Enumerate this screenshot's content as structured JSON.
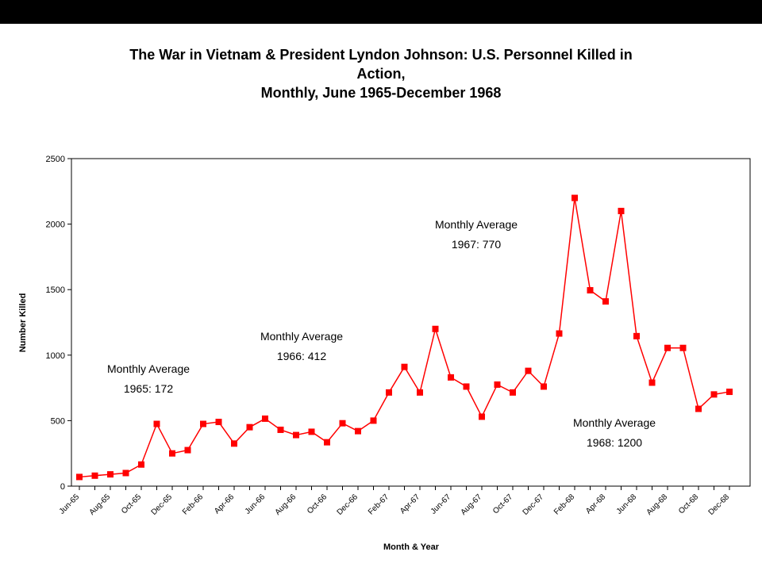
{
  "chart_data": {
    "type": "line",
    "title_lines": [
      "The War in Vietnam & President Lyndon Johnson:  U.S. Personnel Killed in",
      "Action,",
      "Monthly, June 1965-December 1968"
    ],
    "xlabel": "Month & Year",
    "ylabel": "Number Killed",
    "ylim": [
      0,
      2500
    ],
    "yticks": [
      0,
      500,
      1000,
      1500,
      2000,
      2500
    ],
    "yticklabels": [
      "0",
      "500",
      "1000",
      "1500",
      "2000",
      "2500"
    ],
    "grid": false,
    "legend": "none",
    "categories": [
      "Jun-65",
      "Jul-65",
      "Aug-65",
      "Sep-65",
      "Oct-65",
      "Nov-65",
      "Dec-65",
      "Jan-66",
      "Feb-66",
      "Mar-66",
      "Apr-66",
      "May-66",
      "Jun-66",
      "Jul-66",
      "Aug-66",
      "Sep-66",
      "Oct-66",
      "Nov-66",
      "Dec-66",
      "Jan-67",
      "Feb-67",
      "Mar-67",
      "Apr-67",
      "May-67",
      "Jun-67",
      "Jul-67",
      "Aug-67",
      "Sep-67",
      "Oct-67",
      "Nov-67",
      "Dec-67",
      "Jan-68",
      "Feb-68",
      "Mar-68",
      "Apr-68",
      "May-68",
      "Jun-68",
      "Jul-68",
      "Aug-68",
      "Sep-68",
      "Oct-68",
      "Nov-68",
      "Dec-68"
    ],
    "xticklabels": [
      "Jun-65",
      "Aug-65",
      "Oct-65",
      "Dec-65",
      "Feb-66",
      "Apr-66",
      "Jun-66",
      "Aug-66",
      "Oct-66",
      "Dec-66",
      "Feb-67",
      "Apr-67",
      "Jun-67",
      "Aug-67",
      "Oct-67",
      "Dec-67",
      "Feb-68",
      "Apr-68",
      "Jun-68",
      "Aug-68",
      "Oct-68",
      "Dec-68"
    ],
    "series": [
      {
        "color": "#ff0000",
        "marker": "square",
        "values": [
          70,
          80,
          90,
          100,
          165,
          475,
          250,
          275,
          475,
          490,
          325,
          450,
          515,
          430,
          390,
          415,
          335,
          480,
          420,
          500,
          715,
          910,
          715,
          1200,
          830,
          760,
          530,
          775,
          715,
          880,
          760,
          1165,
          2200,
          1495,
          1410,
          2100,
          1145,
          790,
          1055,
          1055,
          590,
          700,
          720
        ]
      }
    ],
    "annotations": [
      {
        "line1": "Monthly Average",
        "line2": "1965: 172"
      },
      {
        "line1": "Monthly Average",
        "line2": "1966: 412"
      },
      {
        "line1": "Monthly Average",
        "line2": "1967: 770"
      },
      {
        "line1": "Monthly Average",
        "line2": "1968: 1200"
      }
    ]
  }
}
